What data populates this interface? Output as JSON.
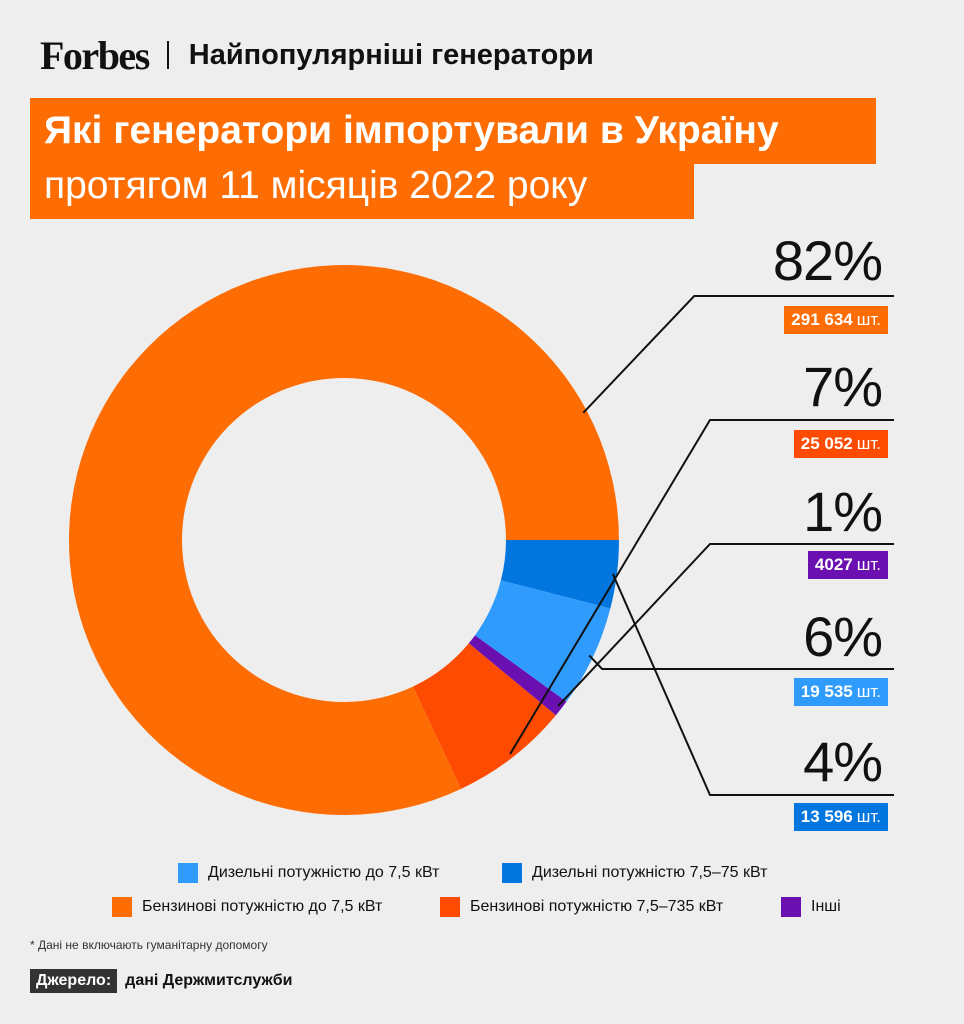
{
  "header": {
    "brand": "Forbes",
    "section_title": "Найпопулярніші генератори"
  },
  "title": {
    "line1": "Які генератори імпортували в Україну",
    "line2": "протягом 11 місяців 2022 року"
  },
  "colors": {
    "background": "#eeeeee",
    "accent": "#fe6d04"
  },
  "chart_data": {
    "type": "pie",
    "donut": true,
    "start": "east-counterclockwise",
    "series": [
      {
        "name": "Бензинові потужністю до 7,5 кВт",
        "percent": 82,
        "percent_label": "82%",
        "count": "291 634",
        "color": "#fe6d04"
      },
      {
        "name": "Бензинові потужністю 7,5–735 кВт",
        "percent": 7,
        "percent_label": "7%",
        "count": "25 052",
        "color": "#fd4c02"
      },
      {
        "name": "Інші",
        "percent": 1,
        "percent_label": "1%",
        "count": "4027",
        "color": "#6a0fb0"
      },
      {
        "name": "Дизельні потужністю до 7,5 кВт",
        "percent": 6,
        "percent_label": "6%",
        "count": "19 535",
        "color": "#2e9bfd"
      },
      {
        "name": "Дизельні потужністю 7,5–75 кВт",
        "percent": 4,
        "percent_label": "4%",
        "count": "13 596",
        "color": "#0276df"
      }
    ],
    "count_unit": "шт."
  },
  "legend": {
    "row1": [
      {
        "label": "Дизельні потужністю до 7,5 кВт",
        "color": "#2e9bfd"
      },
      {
        "label": "Дизельні потужністю 7,5–75 кВт",
        "color": "#0276df"
      }
    ],
    "row2": [
      {
        "label": "Бензинові потужністю до 7,5 кВт",
        "color": "#fe6d04"
      },
      {
        "label": "Бензинові потужністю 7,5–735 кВт",
        "color": "#fd4c02"
      },
      {
        "label": "Інші",
        "color": "#6a0fb0"
      }
    ]
  },
  "footnote": "* Дані не включають гуманітарну допомогу",
  "source": {
    "label": "Джерело:",
    "text": "дані Держмитслужби"
  }
}
